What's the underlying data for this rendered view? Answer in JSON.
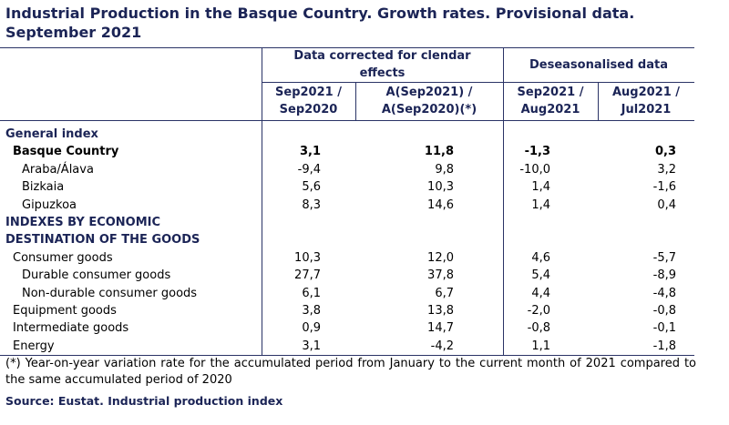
{
  "title": [
    "Industrial Production in the Basque Country. Growth rates. Provisional data.",
    "September 2021"
  ],
  "table": {
    "group_headers": [
      [
        "Data corrected for clendar",
        "effects"
      ],
      [
        "Deseasonalised data"
      ]
    ],
    "column_headers": [
      [
        "Sep2021 /",
        "Sep2020"
      ],
      [
        "A(Sep2021) /",
        "A(Sep2020)(*)"
      ],
      [
        "Sep2021 /",
        "Aug2021"
      ],
      [
        "Aug2021 /",
        "Jul2021"
      ]
    ],
    "rows": [
      {
        "section": [
          "General index"
        ]
      },
      {
        "label": "Basque Country",
        "bold": true,
        "indent": 0,
        "values": [
          "3,1",
          "11,8",
          "-1,3",
          "0,3"
        ]
      },
      {
        "label": "Araba/Álava",
        "bold": false,
        "indent": 1,
        "values": [
          "-9,4",
          "9,8",
          "-10,0",
          "3,2"
        ]
      },
      {
        "label": "Bizkaia",
        "bold": false,
        "indent": 1,
        "values": [
          "5,6",
          "10,3",
          "1,4",
          "-1,6"
        ]
      },
      {
        "label": "Gipuzkoa",
        "bold": false,
        "indent": 1,
        "values": [
          "8,3",
          "14,6",
          "1,4",
          "0,4"
        ]
      },
      {
        "section": [
          "INDEXES BY ECONOMIC",
          "DESTINATION OF THE GOODS"
        ]
      },
      {
        "label": "Consumer goods",
        "bold": false,
        "indent": 0,
        "values": [
          "10,3",
          "12,0",
          "4,6",
          "-5,7"
        ]
      },
      {
        "label": "Durable consumer goods",
        "bold": false,
        "indent": 1,
        "values": [
          "27,7",
          "37,8",
          "5,4",
          "-8,9"
        ]
      },
      {
        "label": "Non-durable consumer goods",
        "bold": false,
        "indent": 1,
        "values": [
          "6,1",
          "6,7",
          "4,4",
          "-4,8"
        ]
      },
      {
        "label": "Equipment goods",
        "bold": false,
        "indent": 0,
        "values": [
          "3,8",
          "13,8",
          "-2,0",
          "-0,8"
        ]
      },
      {
        "label": "Intermediate goods",
        "bold": false,
        "indent": 0,
        "values": [
          "0,9",
          "14,7",
          "-0,8",
          "-0,1"
        ]
      },
      {
        "label": "Energy",
        "bold": false,
        "indent": 0,
        "values": [
          "3,1",
          "-4,2",
          "1,1",
          "-1,8"
        ]
      }
    ]
  },
  "footnote": "(*) Year-on-year variation rate for the accumulated period from January to the current month of 2021 compared to the same accumulated period of 2020",
  "source": "Source: Eustat. Industrial production index"
}
